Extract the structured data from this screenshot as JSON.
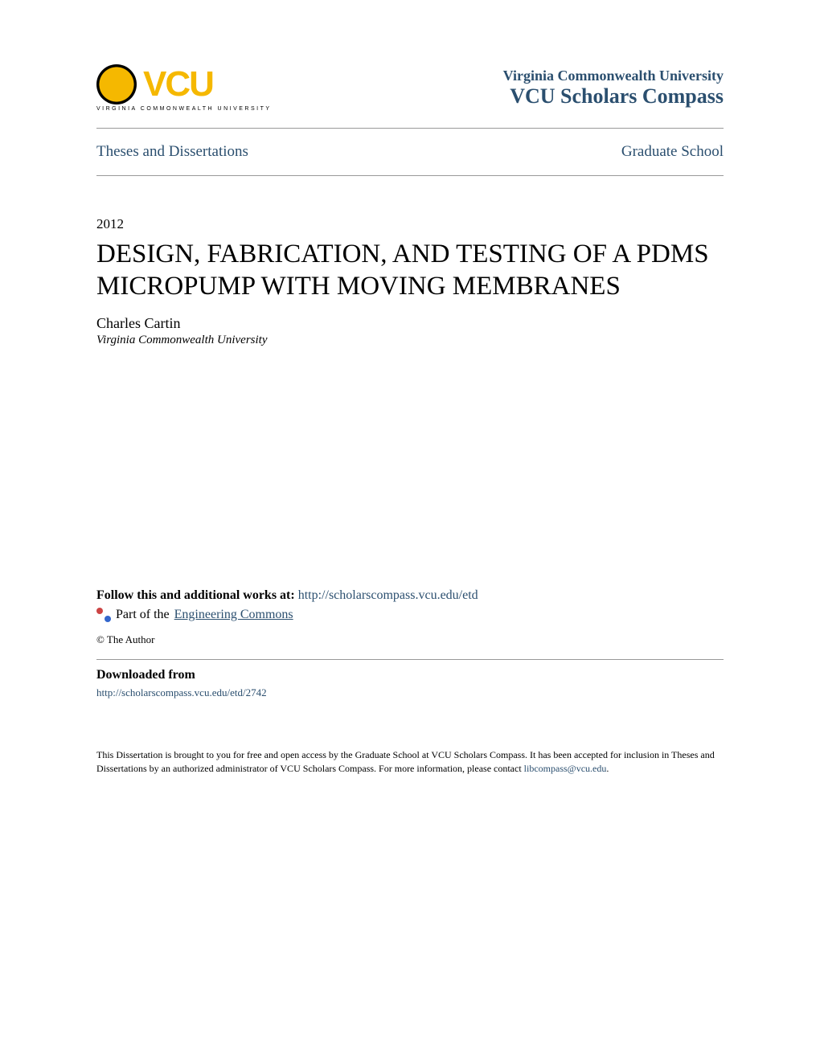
{
  "header": {
    "logo_text": "VCU",
    "logo_subtitle": "VIRGINIA COMMONWEALTH UNIVERSITY",
    "university_name": "Virginia Commonwealth University",
    "repository_name": "VCU Scholars Compass"
  },
  "nav": {
    "left": "Theses and Dissertations",
    "right": "Graduate School"
  },
  "document": {
    "year": "2012",
    "title": "DESIGN, FABRICATION, AND TESTING OF A PDMS MICROPUMP WITH MOVING MEMBRANES",
    "author": "Charles Cartin",
    "affiliation": "Virginia Commonwealth University"
  },
  "follow": {
    "label": "Follow this and additional works at: ",
    "url": "http://scholarscompass.vcu.edu/etd"
  },
  "part_of": {
    "prefix": "Part of the ",
    "link": "Engineering Commons"
  },
  "copyright": "© The Author",
  "downloaded": {
    "heading": "Downloaded from",
    "url": "http://scholarscompass.vcu.edu/etd/2742"
  },
  "disclaimer": {
    "text_part1": "This Dissertation is brought to you for free and open access by the Graduate School at VCU Scholars Compass. It has been accepted for inclusion in Theses and Dissertations by an authorized administrator of VCU Scholars Compass. For more information, please contact ",
    "email": "libcompass@vcu.edu",
    "text_part2": "."
  },
  "colors": {
    "link_color": "#2b4f6f",
    "gold_color": "#f5b800",
    "text_color": "#000000",
    "divider_color": "#999999",
    "background_color": "#ffffff"
  }
}
